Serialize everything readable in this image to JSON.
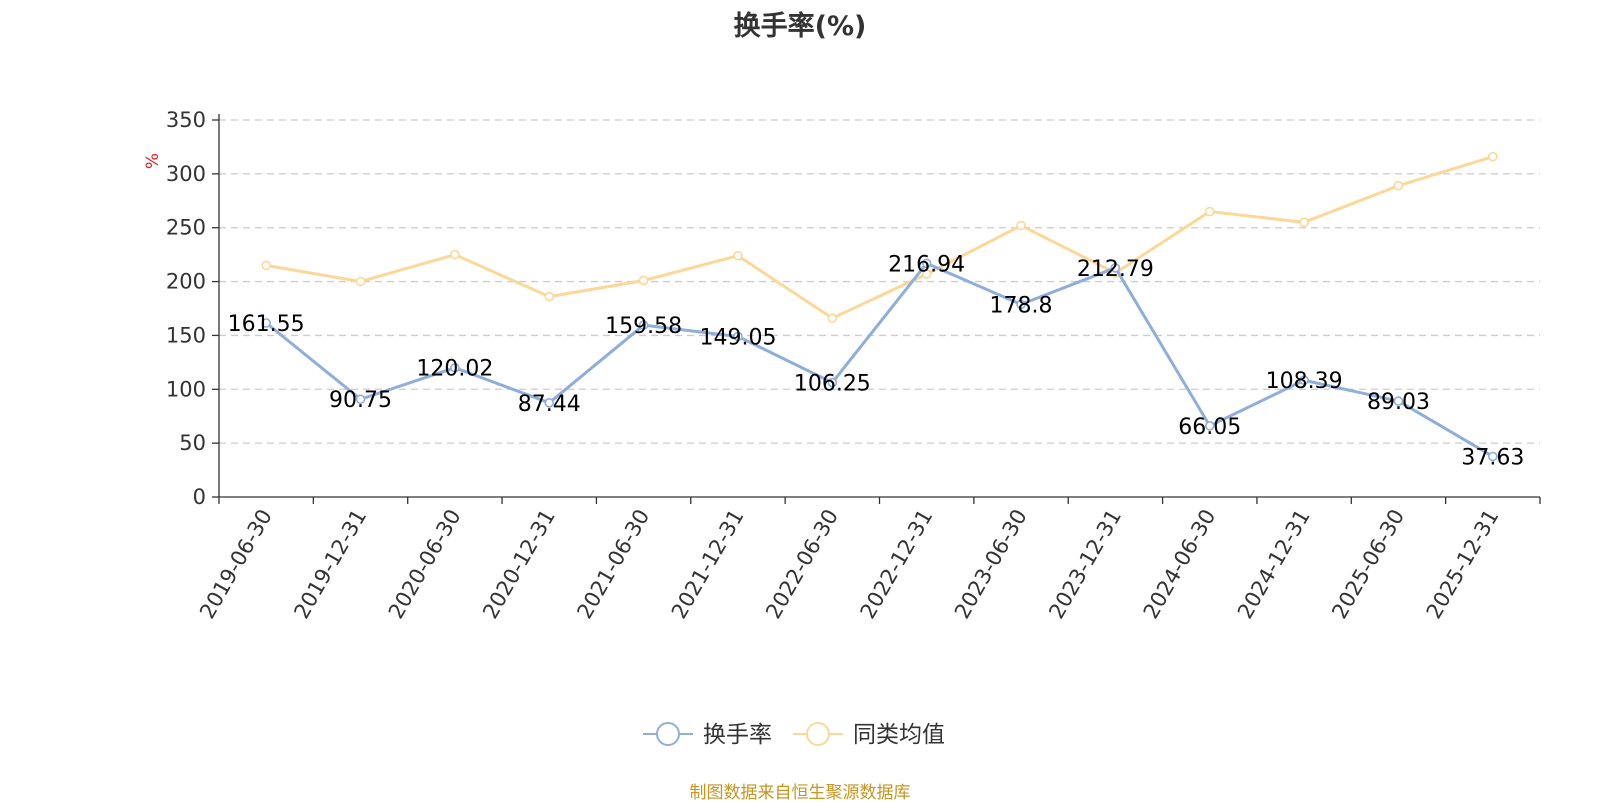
{
  "chart_data": {
    "type": "line",
    "title": "换手率(%)",
    "ylabel": "%",
    "xlabel": "",
    "ylim": [
      0,
      350
    ],
    "yticks": [
      0,
      50,
      100,
      150,
      200,
      250,
      300,
      350
    ],
    "grid": true,
    "legend_position": "bottom-center",
    "categories": [
      "2019-06-30",
      "2019-12-31",
      "2020-06-30",
      "2020-12-31",
      "2021-06-30",
      "2021-12-31",
      "2022-06-30",
      "2022-12-31",
      "2023-06-30",
      "2023-12-31",
      "2024-06-30",
      "2024-12-31",
      "2025-06-30",
      "2025-12-31"
    ],
    "series": [
      {
        "name": "换手率",
        "color": "#8eaedb",
        "show_labels": true,
        "values": [
          161.55,
          90.75,
          120.02,
          87.44,
          159.58,
          149.05,
          106.25,
          216.94,
          178.8,
          212.79,
          66.05,
          108.39,
          89.03,
          37.63
        ],
        "labels": [
          "161.55",
          "90.75",
          "120.02",
          "87.44",
          "159.58",
          "149.05",
          "106.25",
          "216.94",
          "178.8",
          "212.79",
          "66.05",
          "108.39",
          "89.03",
          "37.63"
        ]
      },
      {
        "name": "同类均值",
        "color": "#fcd898",
        "show_labels": false,
        "values": [
          215,
          200,
          225,
          186,
          201,
          224,
          166,
          207,
          252,
          208,
          265,
          255,
          289,
          316
        ]
      }
    ]
  },
  "source": "制图数据来自恒生聚源数据库"
}
